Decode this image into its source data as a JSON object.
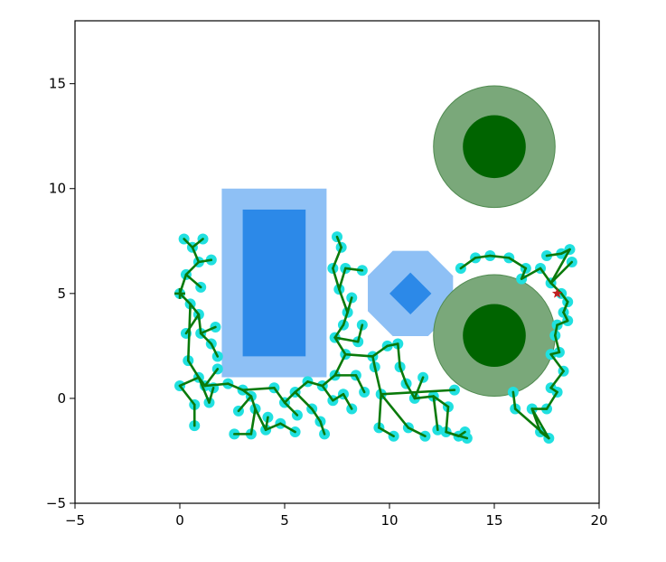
{
  "chart_data": {
    "type": "scatter",
    "title": "",
    "xlabel": "",
    "ylabel": "",
    "xlim": [
      -5,
      20
    ],
    "ylim": [
      -5,
      18
    ],
    "grid": false,
    "x_ticks": [
      -5,
      0,
      5,
      10,
      15,
      20
    ],
    "x_tick_labels": [
      "−5",
      "0",
      "5",
      "10",
      "15",
      "20"
    ],
    "y_ticks": [
      -5,
      0,
      5,
      10,
      15
    ],
    "y_tick_labels": [
      "−5",
      "0",
      "5",
      "10",
      "15"
    ],
    "colors": {
      "rect_outer": "#8ec0f5",
      "rect_inner": "#2c89e8",
      "disk_outer": "#7aa87a",
      "disk_inner": "#006400",
      "tree_edge": "#0a7a0a",
      "tree_node": "#20e0e0",
      "goal": "#c02020"
    },
    "obstacles": {
      "rectangles": [
        {
          "x": 2,
          "y": 1,
          "w": 5,
          "h": 9,
          "role": "outer"
        },
        {
          "x": 3,
          "y": 2,
          "w": 3,
          "h": 7,
          "role": "inner"
        }
      ],
      "octagon": {
        "cx": 11,
        "cy": 5,
        "r": 2.2
      },
      "diamond": {
        "cx": 11,
        "cy": 5,
        "r": 1
      },
      "circles": [
        {
          "cx": 15,
          "cy": 12,
          "r": 2.9,
          "role": "outer"
        },
        {
          "cx": 15,
          "cy": 12,
          "r": 1.5,
          "role": "inner"
        },
        {
          "cx": 15,
          "cy": 3,
          "r": 2.9,
          "role": "outer"
        },
        {
          "cx": 15,
          "cy": 3,
          "r": 1.5,
          "role": "inner"
        }
      ]
    },
    "start": [
      0,
      5
    ],
    "goal": [
      18,
      5
    ],
    "tree_nodes": [
      [
        0,
        5
      ],
      [
        0.3,
        5.9
      ],
      [
        0.9,
        6.5
      ],
      [
        0.6,
        7.2
      ],
      [
        1.1,
        7.6
      ],
      [
        0.2,
        7.6
      ],
      [
        1.5,
        6.6
      ],
      [
        1.0,
        5.3
      ],
      [
        0.5,
        4.5
      ],
      [
        0.9,
        4.0
      ],
      [
        0.3,
        3.1
      ],
      [
        1.0,
        3.1
      ],
      [
        1.5,
        2.6
      ],
      [
        1.7,
        3.4
      ],
      [
        1.8,
        2.0
      ],
      [
        0.4,
        1.8
      ],
      [
        0.9,
        1.0
      ],
      [
        0.0,
        0.6
      ],
      [
        0.7,
        -0.3
      ],
      [
        1.2,
        0.6
      ],
      [
        1.8,
        1.4
      ],
      [
        0.7,
        -1.3
      ],
      [
        1.4,
        -0.2
      ],
      [
        1.6,
        0.5
      ],
      [
        2.3,
        0.7
      ],
      [
        3.0,
        0.4
      ],
      [
        3.4,
        0.1
      ],
      [
        2.8,
        -0.6
      ],
      [
        3.6,
        -0.5
      ],
      [
        4.5,
        0.5
      ],
      [
        3.4,
        -1.7
      ],
      [
        2.6,
        -1.7
      ],
      [
        4.1,
        -1.5
      ],
      [
        4.2,
        -0.9
      ],
      [
        4.8,
        -1.2
      ],
      [
        5.5,
        -1.6
      ],
      [
        5.0,
        -0.2
      ],
      [
        5.5,
        0.3
      ],
      [
        5.6,
        -0.8
      ],
      [
        6.1,
        0.8
      ],
      [
        6.3,
        -0.5
      ],
      [
        6.8,
        0.6
      ],
      [
        6.7,
        -1.1
      ],
      [
        6.9,
        -1.7
      ],
      [
        7.3,
        -0.1
      ],
      [
        7.4,
        1.1
      ],
      [
        7.8,
        0.2
      ],
      [
        8.2,
        -0.5
      ],
      [
        8.4,
        1.1
      ],
      [
        8.8,
        0.3
      ],
      [
        7.5,
        7.7
      ],
      [
        7.7,
        7.2
      ],
      [
        7.3,
        6.2
      ],
      [
        7.9,
        6.2
      ],
      [
        7.6,
        5.2
      ],
      [
        8.2,
        4.8
      ],
      [
        8.0,
        4.1
      ],
      [
        7.8,
        3.5
      ],
      [
        7.4,
        2.9
      ],
      [
        7.9,
        2.1
      ],
      [
        8.5,
        2.7
      ],
      [
        8.7,
        6.1
      ],
      [
        8.7,
        3.5
      ],
      [
        9.2,
        2.0
      ],
      [
        9.3,
        1.5
      ],
      [
        9.6,
        0.2
      ],
      [
        9.5,
        -1.4
      ],
      [
        10.2,
        -1.8
      ],
      [
        9.9,
        2.5
      ],
      [
        10.4,
        2.6
      ],
      [
        10.5,
        1.5
      ],
      [
        10.8,
        0.7
      ],
      [
        10.9,
        -1.4
      ],
      [
        11.7,
        -1.8
      ],
      [
        11.2,
        0.0
      ],
      [
        11.6,
        1.0
      ],
      [
        12.1,
        0.1
      ],
      [
        12.3,
        -1.5
      ],
      [
        12.8,
        -0.4
      ],
      [
        12.7,
        -1.6
      ],
      [
        13.3,
        -1.8
      ],
      [
        13.7,
        -1.9
      ],
      [
        13.6,
        -1.6
      ],
      [
        13.1,
        0.4
      ],
      [
        13.4,
        6.2
      ],
      [
        14.1,
        6.7
      ],
      [
        14.8,
        6.8
      ],
      [
        15.7,
        6.7
      ],
      [
        16.5,
        6.2
      ],
      [
        16.3,
        5.7
      ],
      [
        17.2,
        6.2
      ],
      [
        17.5,
        6.8
      ],
      [
        18.2,
        6.9
      ],
      [
        18.6,
        7.1
      ],
      [
        18.7,
        6.5
      ],
      [
        17.7,
        5.5
      ],
      [
        18.2,
        5.0
      ],
      [
        18.5,
        4.6
      ],
      [
        18.3,
        4.1
      ],
      [
        18.5,
        3.7
      ],
      [
        18.0,
        3.5
      ],
      [
        17.9,
        3.0
      ],
      [
        18.1,
        2.2
      ],
      [
        17.7,
        2.1
      ],
      [
        18.3,
        1.3
      ],
      [
        17.7,
        0.5
      ],
      [
        18.0,
        0.3
      ],
      [
        17.5,
        -0.5
      ],
      [
        16.8,
        -0.5
      ],
      [
        17.2,
        -1.6
      ],
      [
        17.6,
        -1.9
      ],
      [
        16.0,
        -0.5
      ],
      [
        15.9,
        0.3
      ]
    ],
    "tree_edges": [
      [
        0,
        1
      ],
      [
        1,
        2
      ],
      [
        2,
        3
      ],
      [
        3,
        4
      ],
      [
        3,
        5
      ],
      [
        2,
        6
      ],
      [
        1,
        7
      ],
      [
        0,
        8
      ],
      [
        8,
        9
      ],
      [
        9,
        10
      ],
      [
        9,
        11
      ],
      [
        11,
        12
      ],
      [
        11,
        13
      ],
      [
        12,
        14
      ],
      [
        8,
        15
      ],
      [
        15,
        16
      ],
      [
        16,
        17
      ],
      [
        17,
        18
      ],
      [
        16,
        19
      ],
      [
        19,
        20
      ],
      [
        18,
        21
      ],
      [
        16,
        22
      ],
      [
        22,
        23
      ],
      [
        19,
        24
      ],
      [
        24,
        25
      ],
      [
        25,
        26
      ],
      [
        26,
        27
      ],
      [
        26,
        28
      ],
      [
        25,
        29
      ],
      [
        28,
        30
      ],
      [
        30,
        31
      ],
      [
        28,
        32
      ],
      [
        32,
        33
      ],
      [
        32,
        34
      ],
      [
        34,
        35
      ],
      [
        29,
        36
      ],
      [
        36,
        37
      ],
      [
        36,
        38
      ],
      [
        37,
        39
      ],
      [
        37,
        40
      ],
      [
        39,
        41
      ],
      [
        40,
        42
      ],
      [
        42,
        43
      ],
      [
        41,
        44
      ],
      [
        41,
        45
      ],
      [
        44,
        46
      ],
      [
        46,
        47
      ],
      [
        45,
        48
      ],
      [
        48,
        49
      ],
      [
        45,
        59
      ],
      [
        59,
        58
      ],
      [
        58,
        57
      ],
      [
        57,
        56
      ],
      [
        56,
        55
      ],
      [
        56,
        54
      ],
      [
        54,
        53
      ],
      [
        54,
        52
      ],
      [
        52,
        51
      ],
      [
        51,
        50
      ],
      [
        53,
        61
      ],
      [
        58,
        60
      ],
      [
        60,
        62
      ],
      [
        59,
        63
      ],
      [
        63,
        64
      ],
      [
        64,
        65
      ],
      [
        65,
        66
      ],
      [
        66,
        67
      ],
      [
        63,
        68
      ],
      [
        68,
        69
      ],
      [
        69,
        70
      ],
      [
        70,
        71
      ],
      [
        65,
        72
      ],
      [
        72,
        73
      ],
      [
        71,
        74
      ],
      [
        74,
        75
      ],
      [
        74,
        76
      ],
      [
        76,
        77
      ],
      [
        76,
        78
      ],
      [
        78,
        79
      ],
      [
        79,
        80
      ],
      [
        79,
        81
      ],
      [
        80,
        82
      ],
      [
        65,
        83
      ],
      [
        111,
        110
      ],
      [
        110,
        109
      ],
      [
        111,
        112
      ],
      [
        109,
        108
      ],
      [
        108,
        107
      ],
      [
        107,
        106
      ],
      [
        106,
        105
      ],
      [
        105,
        104
      ],
      [
        104,
        103
      ],
      [
        103,
        102
      ],
      [
        102,
        101
      ],
      [
        101,
        100
      ],
      [
        100,
        99
      ],
      [
        99,
        98
      ],
      [
        98,
        97
      ],
      [
        97,
        96
      ],
      [
        96,
        95
      ],
      [
        95,
        94
      ],
      [
        95,
        93
      ],
      [
        93,
        92
      ],
      [
        92,
        91
      ],
      [
        95,
        90
      ],
      [
        90,
        89
      ],
      [
        89,
        88
      ],
      [
        88,
        87
      ],
      [
        87,
        86
      ],
      [
        86,
        85
      ],
      [
        85,
        84
      ],
      [
        98,
        97
      ],
      [
        108,
        110
      ]
    ]
  }
}
